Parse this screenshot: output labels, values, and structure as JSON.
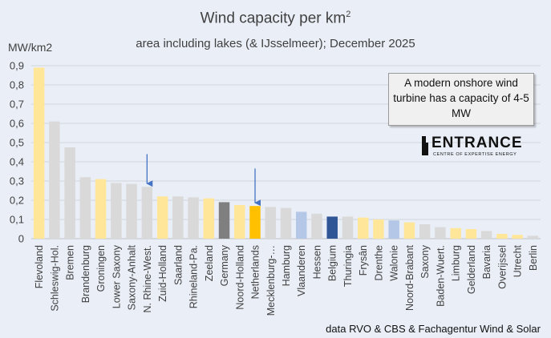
{
  "title_main": "Wind capacity per km",
  "title_sup": "2",
  "subtitle": "area including lakes (& IJsselmeer); December 2025",
  "y_unit_label": "MW/km2",
  "note_text": "A modern onshore wind turbine has a capacity of 4-5 MW",
  "logo": {
    "name": "ENTRANCE",
    "tagline": "CENTRE OF EXPERTISE ENERGY"
  },
  "source": "data RVO & CBS & Fachagentur Wind & Solar",
  "colors": {
    "background": "#eaeff7",
    "german_state": "#d9d9d9",
    "dutch_province": "#ffe699",
    "belgian_region": "#b4c7e7",
    "germany_total": "#7f7f7f",
    "netherlands_total": "#ffc000",
    "belgium_total": "#2f5597",
    "gridline": "#d0d4da",
    "arrow": "#4472c4"
  },
  "chart_data": {
    "type": "bar",
    "ylim": [
      0,
      0.9
    ],
    "ytick_labels": [
      "0",
      "0,1",
      "0,2",
      "0,3",
      "0,4",
      "0,5",
      "0,6",
      "0,7",
      "0,8",
      "0,9"
    ],
    "grid": true,
    "categories": [
      "Flevoland",
      "Schleswig-Hol.",
      "Bremen",
      "Brandenburg",
      "Groningen",
      "Lower Saxony",
      "Saxony-Anhalt",
      "N. Rhine-West.",
      "Zuid-Holland",
      "Saarland",
      "Rhineland-Pa.",
      "Zeeland",
      "Germany",
      "Noord-Holland",
      "Netherlands",
      "Mecklenburg-…",
      "Hamburg",
      "Vlaanderen",
      "Hessen",
      "Belgium",
      "Thuringia",
      "Frysân",
      "Drenthe",
      "Walonie",
      "Noord-Brabant",
      "Saxony",
      "Baden-Wuert.",
      "Limburg",
      "Gelderland",
      "Bavaria",
      "Overijssel",
      "Utrecht",
      "Berlin"
    ],
    "values": [
      0.89,
      0.61,
      0.475,
      0.32,
      0.31,
      0.29,
      0.285,
      0.27,
      0.22,
      0.22,
      0.215,
      0.21,
      0.19,
      0.175,
      0.17,
      0.165,
      0.16,
      0.14,
      0.13,
      0.115,
      0.115,
      0.11,
      0.1,
      0.095,
      0.085,
      0.075,
      0.06,
      0.055,
      0.05,
      0.04,
      0.025,
      0.02,
      0.015
    ],
    "bar_colors": [
      "dutch_province",
      "german_state",
      "german_state",
      "german_state",
      "dutch_province",
      "german_state",
      "german_state",
      "german_state",
      "dutch_province",
      "german_state",
      "german_state",
      "dutch_province",
      "germany_total",
      "dutch_province",
      "netherlands_total",
      "german_state",
      "german_state",
      "belgian_region",
      "german_state",
      "belgium_total",
      "german_state",
      "dutch_province",
      "dutch_province",
      "belgian_region",
      "dutch_province",
      "german_state",
      "german_state",
      "dutch_province",
      "dutch_province",
      "german_state",
      "dutch_province",
      "dutch_province",
      "german_state"
    ],
    "arrows": [
      {
        "category": "N. Rhine-West.",
        "from_value": 0.44
      },
      {
        "category": "Netherlands",
        "from_value": 0.365
      }
    ]
  }
}
